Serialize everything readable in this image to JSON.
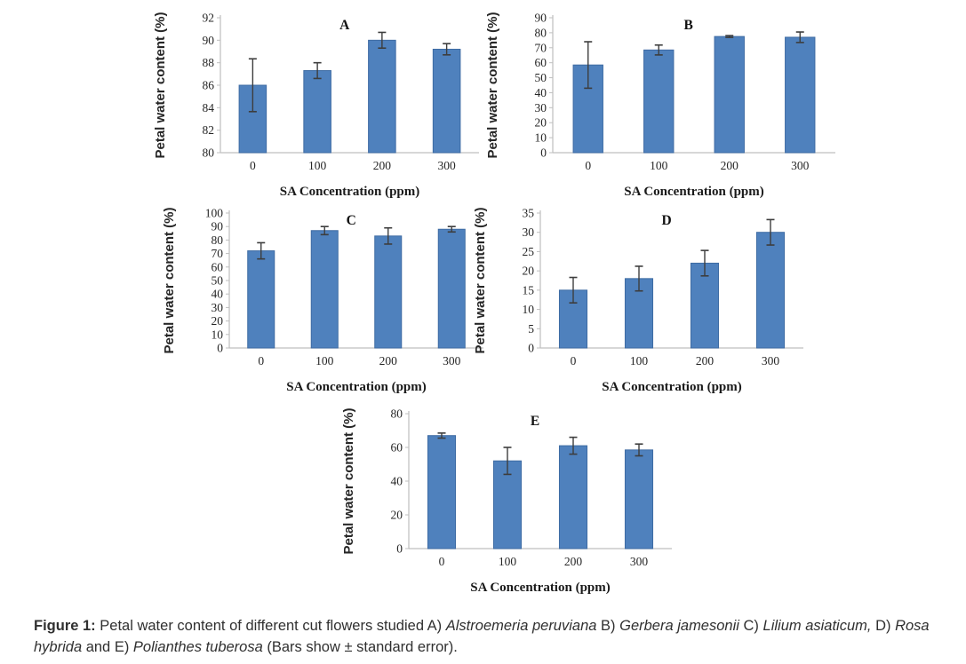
{
  "figure": {
    "caption": {
      "prefix": "Figure 1:",
      "segments": [
        {
          "text": " Petal water content of different cut flowers studied A) ",
          "style": "normal"
        },
        {
          "text": "Alstroemeria peruviana",
          "style": "italic"
        },
        {
          "text": " B) ",
          "style": "normal"
        },
        {
          "text": "Gerbera jamesonii",
          "style": "italic"
        },
        {
          "text": " C) ",
          "style": "normal"
        },
        {
          "text": "Lilium asiaticum,",
          "style": "italic"
        },
        {
          "text": " D) ",
          "style": "normal"
        },
        {
          "text": "Rosa hybrida",
          "style": "italic"
        },
        {
          "text": " and E) ",
          "style": "normal"
        },
        {
          "text": "Polianthes tuberosa",
          "style": "italic"
        },
        {
          "text": " (Bars show ± standard error).",
          "style": "normal"
        }
      ]
    }
  },
  "colors": {
    "bar_fill": "#4f81bd",
    "bar_edge": "#3e6ba3",
    "axis": "#bfbfbf",
    "error_bar": "#3d3d3d",
    "text": "#262626"
  },
  "chart_data": [
    {
      "type": "bar",
      "panel_label": "A",
      "title": "",
      "categories": [
        "0",
        "100",
        "200",
        "300"
      ],
      "values": [
        86.0,
        87.3,
        90.0,
        89.2
      ],
      "errors": [
        2.35,
        0.7,
        0.7,
        0.5
      ],
      "xlabel": "SA Concentration (ppm)",
      "ylabel": "Petal water content (%)",
      "ylim": [
        80,
        92
      ],
      "ytick_step": 2,
      "grid": false,
      "legend": "none"
    },
    {
      "type": "bar",
      "panel_label": "B",
      "title": "",
      "categories": [
        "0",
        "100",
        "200",
        "300"
      ],
      "values": [
        58.5,
        68.5,
        77.5,
        77.0
      ],
      "errors": [
        15.5,
        3.3,
        0.6,
        3.5
      ],
      "xlabel": "SA Concentration (ppm)",
      "ylabel": "Petal water content (%)",
      "ylim": [
        0,
        90
      ],
      "ytick_step": 10,
      "grid": false,
      "legend": "none"
    },
    {
      "type": "bar",
      "panel_label": "C",
      "title": "",
      "categories": [
        "0",
        "100",
        "200",
        "300"
      ],
      "values": [
        72.0,
        87.0,
        83.0,
        88.0
      ],
      "errors": [
        6.0,
        3.0,
        6.0,
        2.0
      ],
      "xlabel": "SA Concentration (ppm)",
      "ylabel": "Petal water content (%)",
      "ylim": [
        0,
        100
      ],
      "ytick_step": 10,
      "grid": false,
      "legend": "none"
    },
    {
      "type": "bar",
      "panel_label": "D",
      "title": "",
      "categories": [
        "0",
        "100",
        "200",
        "300"
      ],
      "values": [
        15.0,
        18.0,
        22.0,
        30.0
      ],
      "errors": [
        3.3,
        3.2,
        3.3,
        3.3
      ],
      "xlabel": "SA Concentration (ppm)",
      "ylabel": "Petal water content (%)",
      "ylim": [
        0,
        35
      ],
      "ytick_step": 5,
      "grid": false,
      "legend": "none"
    },
    {
      "type": "bar",
      "panel_label": "E",
      "title": "",
      "categories": [
        "0",
        "100",
        "200",
        "300"
      ],
      "values": [
        67.0,
        52.0,
        61.0,
        58.5
      ],
      "errors": [
        1.5,
        8.0,
        5.0,
        3.5
      ],
      "xlabel": "SA Concentration (ppm)",
      "ylabel": "Petal water content (%)",
      "ylim": [
        0,
        80
      ],
      "ytick_step": 20,
      "grid": false,
      "legend": "none"
    }
  ]
}
